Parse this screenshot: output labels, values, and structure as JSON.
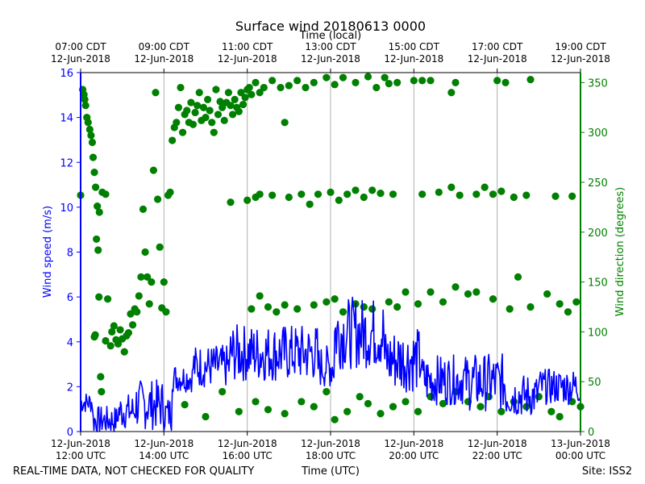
{
  "chart_data": {
    "type": "line+scatter",
    "title": "Surface wind 20180613 0000",
    "top_axis_label": "Time (local)",
    "bottom_axis_label": "Time (UTC)",
    "footer_left": "REAL-TIME DATA, NOT CHECKED FOR QUALITY",
    "footer_right": "Site: ISS2",
    "colors": {
      "speed": "#0000ff",
      "direction": "#008000",
      "grid": "#b0b0b0",
      "axes": "#000000"
    },
    "x_range_hours_utc": [
      12,
      24
    ],
    "x_gridlines_hours_utc": [
      14,
      16,
      18,
      20,
      22
    ],
    "x_ticks_utc": [
      {
        "hour": 12,
        "date": "12-Jun-2018",
        "time": "12:00 UTC"
      },
      {
        "hour": 14,
        "date": "12-Jun-2018",
        "time": "14:00 UTC"
      },
      {
        "hour": 16,
        "date": "12-Jun-2018",
        "time": "16:00 UTC"
      },
      {
        "hour": 18,
        "date": "12-Jun-2018",
        "time": "18:00 UTC"
      },
      {
        "hour": 20,
        "date": "12-Jun-2018",
        "time": "20:00 UTC"
      },
      {
        "hour": 22,
        "date": "12-Jun-2018",
        "time": "22:00 UTC"
      },
      {
        "hour": 24,
        "date": "13-Jun-2018",
        "time": "00:00 UTC"
      }
    ],
    "x_ticks_local": [
      {
        "hour": 12,
        "time": "07:00 CDT",
        "date": "12-Jun-2018"
      },
      {
        "hour": 14,
        "time": "09:00 CDT",
        "date": "12-Jun-2018"
      },
      {
        "hour": 16,
        "time": "11:00 CDT",
        "date": "12-Jun-2018"
      },
      {
        "hour": 18,
        "time": "13:00 CDT",
        "date": "12-Jun-2018"
      },
      {
        "hour": 20,
        "time": "15:00 CDT",
        "date": "12-Jun-2018"
      },
      {
        "hour": 22,
        "time": "17:00 CDT",
        "date": "12-Jun-2018"
      },
      {
        "hour": 24,
        "time": "19:00 CDT",
        "date": "12-Jun-2018"
      }
    ],
    "y_left": {
      "label": "Wind speed (m/s)",
      "range": [
        0,
        16
      ],
      "ticks": [
        0,
        2,
        4,
        6,
        8,
        10,
        12,
        14,
        16
      ]
    },
    "y_right": {
      "label": "Wind direction (degrees)",
      "range": [
        0,
        360
      ],
      "ticks": [
        0,
        50,
        100,
        150,
        200,
        250,
        300,
        350
      ]
    },
    "series": [
      {
        "name": "Wind speed",
        "type": "line",
        "axis": "left",
        "units": "m/s",
        "approx_segments": [
          {
            "t0": 12.0,
            "t1": 12.3,
            "mean": 1.3,
            "amp": 0.3
          },
          {
            "t0": 12.3,
            "t1": 12.9,
            "mean": 0.5,
            "amp": 0.4
          },
          {
            "t0": 12.9,
            "t1": 13.3,
            "mean": 0.9,
            "amp": 0.5
          },
          {
            "t0": 13.3,
            "t1": 14.0,
            "mean": 1.2,
            "amp": 0.7
          },
          {
            "t0": 14.0,
            "t1": 14.2,
            "mean": 0.8,
            "amp": 0.5
          },
          {
            "t0": 14.2,
            "t1": 14.7,
            "mean": 2.4,
            "amp": 0.4
          },
          {
            "t0": 14.7,
            "t1": 15.6,
            "mean": 2.9,
            "amp": 0.6
          },
          {
            "t0": 15.6,
            "t1": 17.7,
            "mean": 3.5,
            "amp": 0.8
          },
          {
            "t0": 17.7,
            "t1": 18.1,
            "mean": 2.9,
            "amp": 0.6
          },
          {
            "t0": 18.1,
            "t1": 19.3,
            "mean": 4.4,
            "amp": 1.0
          },
          {
            "t0": 19.3,
            "t1": 20.2,
            "mean": 3.2,
            "amp": 0.9
          },
          {
            "t0": 20.2,
            "t1": 21.3,
            "mean": 2.3,
            "amp": 0.7
          },
          {
            "t0": 21.3,
            "t1": 22.2,
            "mean": 2.2,
            "amp": 0.8
          },
          {
            "t0": 22.2,
            "t1": 23.0,
            "mean": 1.6,
            "amp": 0.6
          },
          {
            "t0": 23.0,
            "t1": 24.0,
            "mean": 2.0,
            "amp": 0.5
          }
        ]
      },
      {
        "name": "Wind direction",
        "type": "scatter",
        "axis": "right",
        "units": "degrees",
        "points": [
          [
            12.0,
            237
          ],
          [
            12.05,
            343
          ],
          [
            12.08,
            338
          ],
          [
            12.1,
            333
          ],
          [
            12.12,
            327
          ],
          [
            12.15,
            315
          ],
          [
            12.18,
            310
          ],
          [
            12.22,
            303
          ],
          [
            12.25,
            297
          ],
          [
            12.28,
            290
          ],
          [
            12.3,
            275
          ],
          [
            12.33,
            260
          ],
          [
            12.36,
            245
          ],
          [
            12.4,
            226
          ],
          [
            12.45,
            220
          ],
          [
            12.52,
            240
          ],
          [
            12.6,
            238
          ],
          [
            12.38,
            193
          ],
          [
            12.42,
            182
          ],
          [
            12.44,
            135
          ],
          [
            12.48,
            55
          ],
          [
            12.5,
            40
          ],
          [
            12.33,
            95
          ],
          [
            12.35,
            97
          ],
          [
            12.6,
            91
          ],
          [
            12.65,
            133
          ],
          [
            12.72,
            86
          ],
          [
            12.75,
            100
          ],
          [
            12.8,
            106
          ],
          [
            12.85,
            92
          ],
          [
            12.9,
            88
          ],
          [
            12.95,
            102
          ],
          [
            13.0,
            93
          ],
          [
            13.05,
            80
          ],
          [
            13.1,
            96
          ],
          [
            13.15,
            99
          ],
          [
            13.2,
            118
          ],
          [
            13.25,
            107
          ],
          [
            13.3,
            123
          ],
          [
            13.35,
            120
          ],
          [
            13.4,
            136
          ],
          [
            13.45,
            155
          ],
          [
            13.5,
            223
          ],
          [
            13.55,
            180
          ],
          [
            13.6,
            155
          ],
          [
            13.65,
            128
          ],
          [
            13.7,
            150
          ],
          [
            13.75,
            262
          ],
          [
            13.8,
            340
          ],
          [
            13.85,
            233
          ],
          [
            13.9,
            185
          ],
          [
            13.95,
            124
          ],
          [
            14.0,
            150
          ],
          [
            14.05,
            120
          ],
          [
            14.1,
            237
          ],
          [
            14.15,
            240
          ],
          [
            14.2,
            292
          ],
          [
            14.25,
            305
          ],
          [
            14.3,
            310
          ],
          [
            14.35,
            325
          ],
          [
            14.4,
            345
          ],
          [
            14.45,
            300
          ],
          [
            14.5,
            318
          ],
          [
            14.55,
            322
          ],
          [
            14.6,
            310
          ],
          [
            14.65,
            330
          ],
          [
            14.7,
            308
          ],
          [
            14.75,
            320
          ],
          [
            14.8,
            327
          ],
          [
            14.85,
            340
          ],
          [
            14.9,
            312
          ],
          [
            14.95,
            325
          ],
          [
            15.0,
            315
          ],
          [
            15.05,
            333
          ],
          [
            15.1,
            322
          ],
          [
            15.15,
            310
          ],
          [
            15.2,
            300
          ],
          [
            15.25,
            343
          ],
          [
            15.3,
            318
          ],
          [
            15.35,
            331
          ],
          [
            15.4,
            325
          ],
          [
            15.45,
            312
          ],
          [
            15.5,
            330
          ],
          [
            15.55,
            340
          ],
          [
            15.6,
            327
          ],
          [
            15.65,
            318
          ],
          [
            15.7,
            333
          ],
          [
            15.75,
            325
          ],
          [
            15.8,
            321
          ],
          [
            15.85,
            340
          ],
          [
            15.9,
            328
          ],
          [
            15.95,
            335
          ],
          [
            16.0,
            343
          ],
          [
            16.05,
            345
          ],
          [
            16.1,
            338
          ],
          [
            16.2,
            350
          ],
          [
            16.3,
            340
          ],
          [
            16.4,
            345
          ],
          [
            16.6,
            352
          ],
          [
            16.8,
            345
          ],
          [
            16.9,
            310
          ],
          [
            17.0,
            347
          ],
          [
            17.2,
            352
          ],
          [
            17.4,
            345
          ],
          [
            17.6,
            350
          ],
          [
            17.9,
            355
          ],
          [
            18.1,
            348
          ],
          [
            18.3,
            355
          ],
          [
            18.6,
            350
          ],
          [
            18.9,
            356
          ],
          [
            19.1,
            345
          ],
          [
            19.3,
            355
          ],
          [
            19.4,
            349
          ],
          [
            19.6,
            350
          ],
          [
            20.0,
            352
          ],
          [
            20.2,
            352
          ],
          [
            20.4,
            352
          ],
          [
            20.9,
            340
          ],
          [
            21.0,
            350
          ],
          [
            22.0,
            352
          ],
          [
            22.2,
            350
          ],
          [
            22.8,
            353
          ],
          [
            15.6,
            230
          ],
          [
            16.0,
            232
          ],
          [
            16.2,
            235
          ],
          [
            16.3,
            238
          ],
          [
            16.6,
            237
          ],
          [
            17.0,
            235
          ],
          [
            17.3,
            238
          ],
          [
            17.5,
            228
          ],
          [
            17.7,
            238
          ],
          [
            18.0,
            240
          ],
          [
            18.2,
            232
          ],
          [
            18.4,
            238
          ],
          [
            18.6,
            242
          ],
          [
            18.8,
            235
          ],
          [
            19.0,
            242
          ],
          [
            19.2,
            239
          ],
          [
            19.5,
            238
          ],
          [
            20.2,
            238
          ],
          [
            20.6,
            240
          ],
          [
            20.9,
            245
          ],
          [
            21.1,
            237
          ],
          [
            21.5,
            238
          ],
          [
            21.7,
            245
          ],
          [
            21.9,
            238
          ],
          [
            22.1,
            241
          ],
          [
            22.4,
            235
          ],
          [
            22.7,
            237
          ],
          [
            23.4,
            236
          ],
          [
            23.8,
            236
          ],
          [
            16.1,
            123
          ],
          [
            16.3,
            136
          ],
          [
            16.5,
            125
          ],
          [
            16.7,
            120
          ],
          [
            16.9,
            127
          ],
          [
            17.2,
            123
          ],
          [
            17.6,
            127
          ],
          [
            17.9,
            130
          ],
          [
            18.1,
            133
          ],
          [
            18.3,
            120
          ],
          [
            18.6,
            128
          ],
          [
            18.8,
            125
          ],
          [
            19.0,
            123
          ],
          [
            19.4,
            130
          ],
          [
            19.6,
            125
          ],
          [
            19.8,
            140
          ],
          [
            20.1,
            128
          ],
          [
            20.4,
            140
          ],
          [
            20.7,
            130
          ],
          [
            21.0,
            145
          ],
          [
            21.3,
            138
          ],
          [
            21.5,
            140
          ],
          [
            21.9,
            133
          ],
          [
            22.3,
            123
          ],
          [
            22.5,
            155
          ],
          [
            22.8,
            125
          ],
          [
            23.2,
            138
          ],
          [
            23.5,
            128
          ],
          [
            23.7,
            120
          ],
          [
            23.9,
            130
          ],
          [
            14.5,
            27
          ],
          [
            15.0,
            15
          ],
          [
            15.4,
            40
          ],
          [
            15.8,
            20
          ],
          [
            16.2,
            30
          ],
          [
            16.5,
            22
          ],
          [
            16.9,
            18
          ],
          [
            17.3,
            30
          ],
          [
            17.6,
            25
          ],
          [
            17.9,
            40
          ],
          [
            18.1,
            12
          ],
          [
            18.4,
            20
          ],
          [
            18.7,
            35
          ],
          [
            18.9,
            28
          ],
          [
            19.2,
            18
          ],
          [
            19.5,
            25
          ],
          [
            19.8,
            30
          ],
          [
            20.1,
            20
          ],
          [
            20.4,
            35
          ],
          [
            20.7,
            28
          ],
          [
            21.0,
            40
          ],
          [
            21.3,
            30
          ],
          [
            21.6,
            25
          ],
          [
            21.8,
            35
          ],
          [
            22.1,
            20
          ],
          [
            22.4,
            30
          ],
          [
            22.7,
            25
          ],
          [
            23.0,
            35
          ],
          [
            23.3,
            20
          ],
          [
            23.5,
            15
          ],
          [
            23.8,
            30
          ],
          [
            24.0,
            25
          ]
        ]
      }
    ]
  }
}
